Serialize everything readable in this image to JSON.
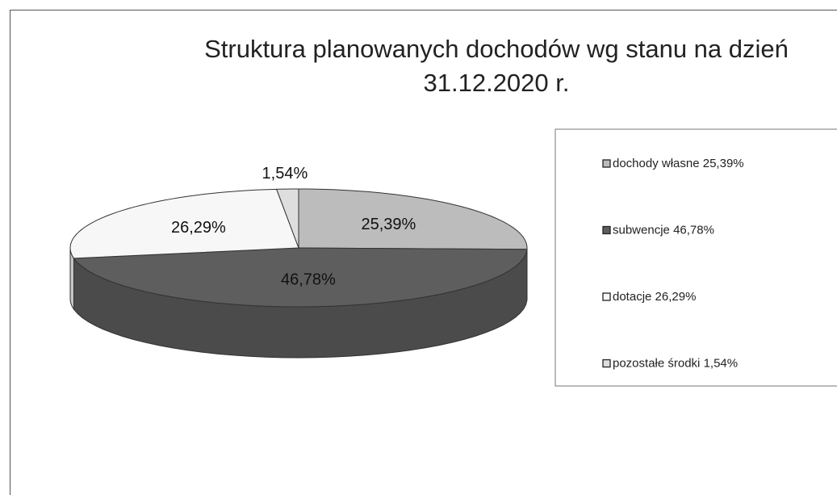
{
  "chart_data": {
    "type": "pie3d",
    "title": "Struktura planowanych dochodów wg stanu na dzień 31.12.2020 r.",
    "categories": [
      "dochody własne",
      "subwencje",
      "dotacje",
      "pozostałe środki"
    ],
    "values": [
      25.39,
      46.78,
      26.29,
      1.54
    ],
    "value_labels": [
      "25,39%",
      "46,78%",
      "26,29%",
      "1,54%"
    ],
    "colors": [
      "#bcbcbc",
      "#5e5e5e",
      "#f7f7f7",
      "#dedede"
    ],
    "legend": "right"
  }
}
